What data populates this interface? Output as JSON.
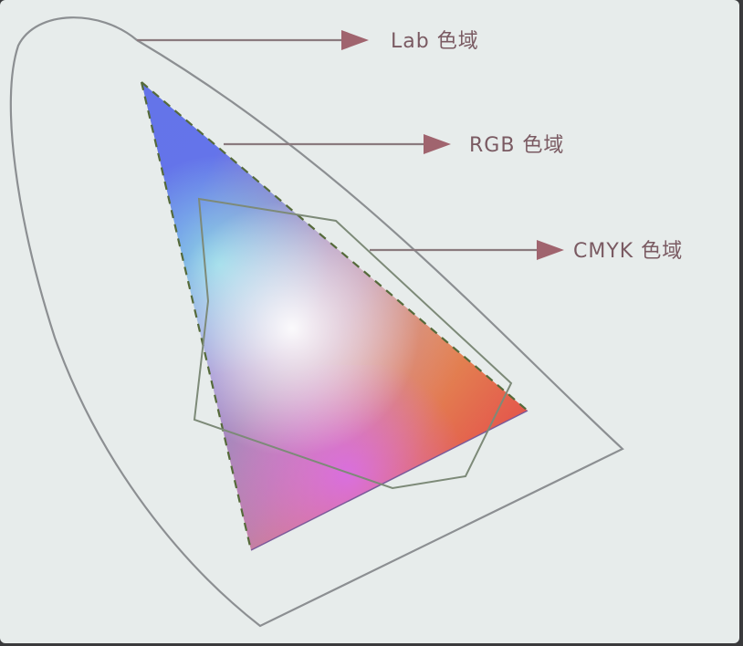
{
  "labels": {
    "lab": "Lab 色域",
    "rgb": "RGB 色域",
    "cmyk": "CMYK 色域"
  },
  "colors": {
    "panel": "#e7eceb",
    "outline": "#8c8f92",
    "arrow": "#a0646e",
    "label": "#7a5a62",
    "rgb_red": "#e4574c",
    "rgb_green": "#a8dc3a",
    "rgb_blue": "#6a6ef0",
    "center_white": "#ffffff",
    "magenta": "#d76cf0",
    "cyan": "#8fe6e8",
    "yellow": "#e6e04a"
  },
  "icons": [
    "arrow-right-icon",
    "arrow-right-icon",
    "arrow-right-icon"
  ]
}
